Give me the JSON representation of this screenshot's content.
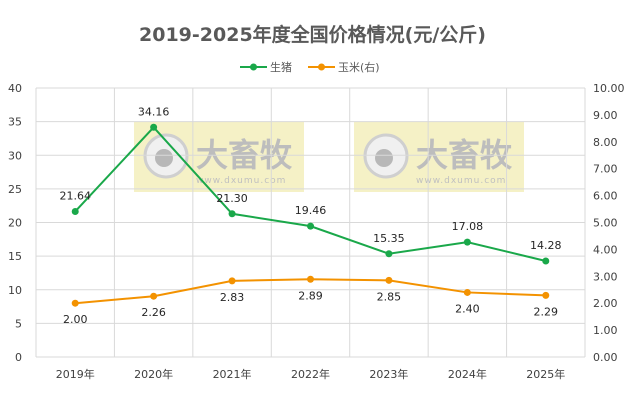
{
  "chart_data": {
    "type": "line",
    "title": "2019-2025年度全国价格情况(元/公斤)",
    "categories": [
      "2019年",
      "2020年",
      "2021年",
      "2022年",
      "2023年",
      "2024年",
      "2025年"
    ],
    "series": [
      {
        "name": "生猪",
        "axis": "left",
        "color": "#1aa84a",
        "values": [
          21.64,
          34.16,
          21.3,
          19.46,
          15.35,
          17.08,
          14.28
        ],
        "labels": [
          "21.64",
          "34.16",
          "21.30",
          "19.46",
          "15.35",
          "17.08",
          "14.28"
        ]
      },
      {
        "name": "玉米(右)",
        "axis": "right",
        "color": "#f39200",
        "values": [
          2.0,
          2.26,
          2.83,
          2.89,
          2.85,
          2.4,
          2.29
        ],
        "labels": [
          "2.00",
          "2.26",
          "2.83",
          "2.89",
          "2.85",
          "2.40",
          "2.29"
        ]
      }
    ],
    "y_left": {
      "range": [
        0,
        40
      ],
      "step": 5,
      "ticks": [
        "0",
        "5",
        "10",
        "15",
        "20",
        "25",
        "30",
        "35",
        "40"
      ]
    },
    "y_right": {
      "range": [
        0,
        10
      ],
      "step": 1,
      "ticks": [
        "0.00",
        "1.00",
        "2.00",
        "3.00",
        "4.00",
        "5.00",
        "6.00",
        "7.00",
        "8.00",
        "9.00",
        "10.00"
      ]
    },
    "grid": true,
    "legend_position": "top"
  },
  "watermark": {
    "text": "大畜牧",
    "url": "www.dxumu.com"
  }
}
